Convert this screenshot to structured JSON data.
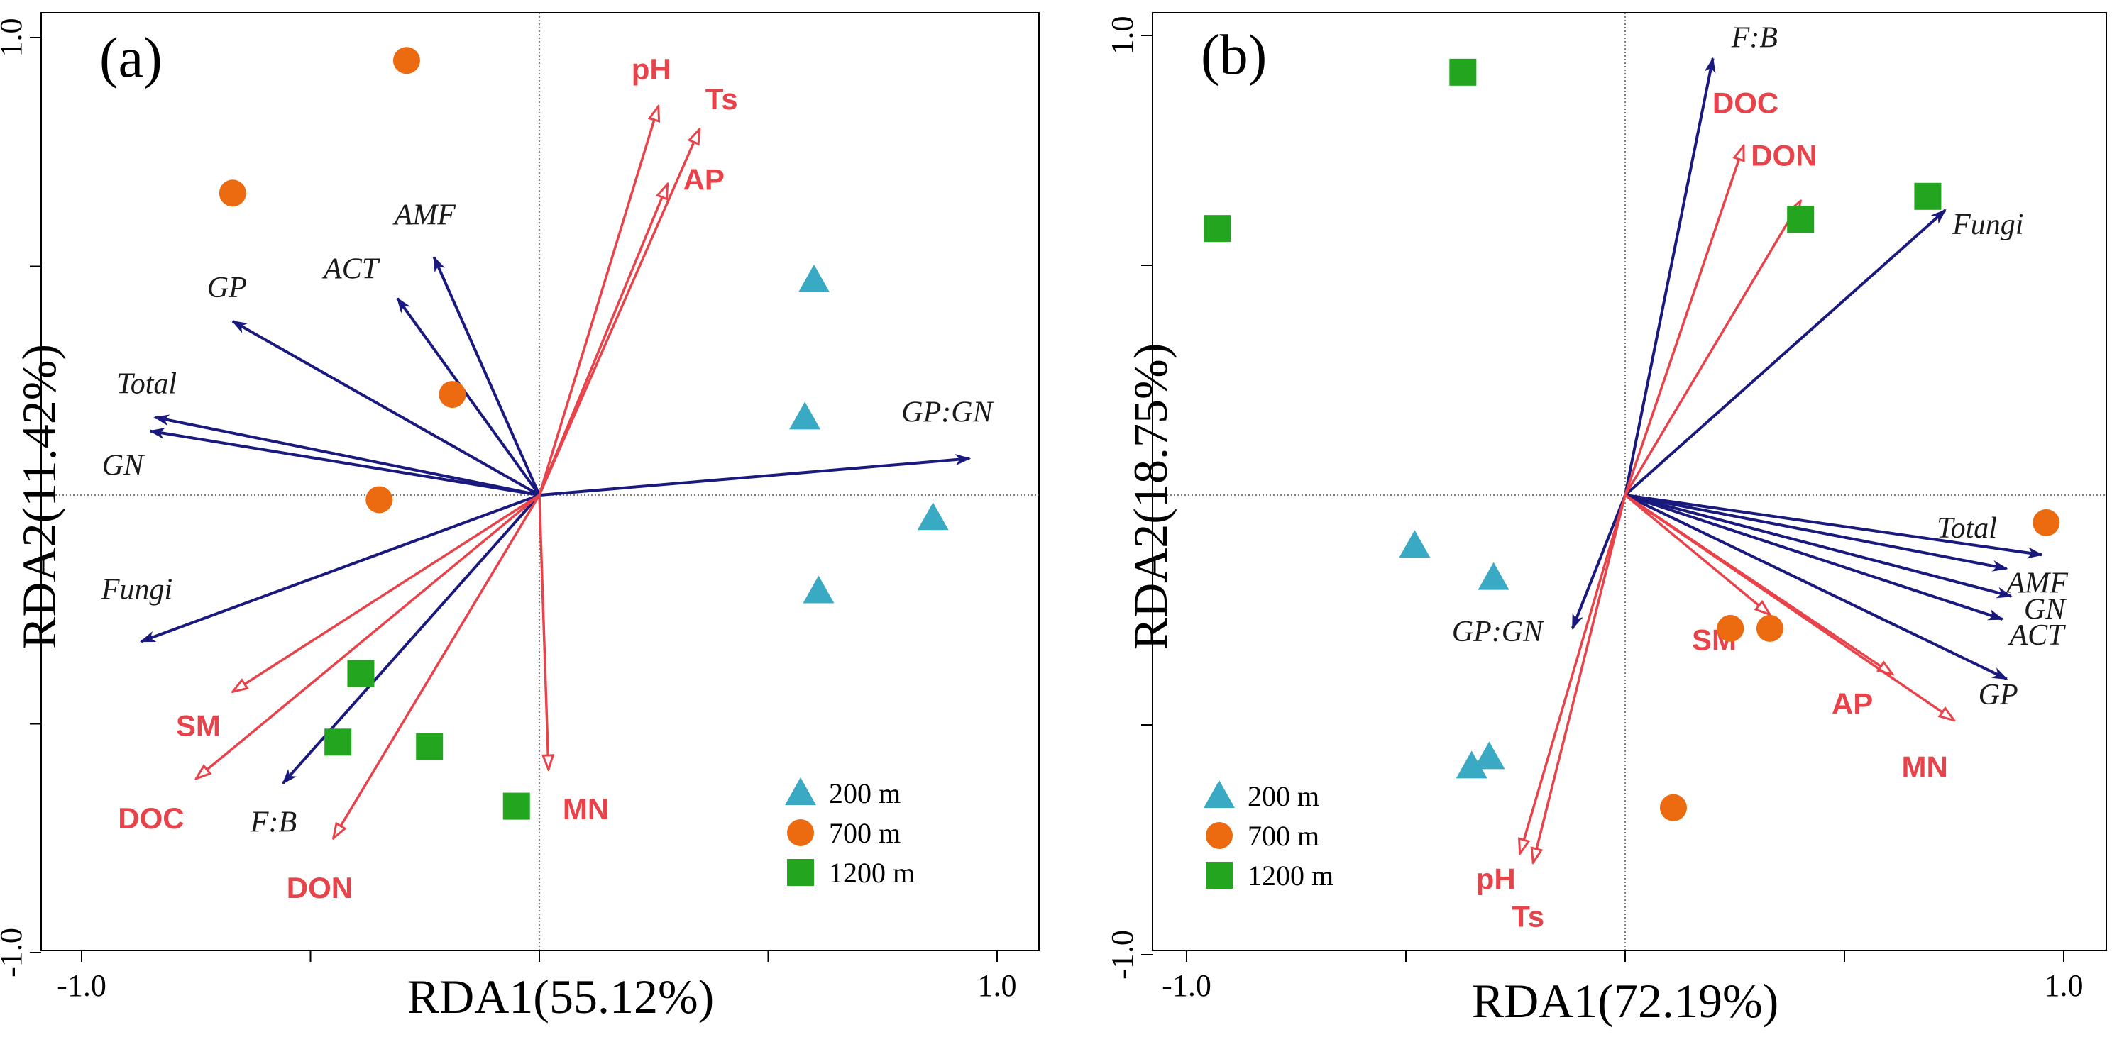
{
  "chart_data": [
    {
      "type": "scatter",
      "panel_label": "(a)",
      "xlabel": "RDA1(55.12%)",
      "ylabel": "RDA2(11.42%)",
      "xlim": [
        -1.0,
        1.0
      ],
      "ylim": [
        -1.0,
        1.0
      ],
      "x_ticks": [
        -1.0,
        -0.5,
        0.0,
        0.5,
        1.0
      ],
      "x_tick_labels": [
        "-1.0",
        "",
        "",
        "",
        "1.0"
      ],
      "y_ticks": [
        -1.0,
        -0.5,
        0.0,
        0.5,
        1.0
      ],
      "y_tick_labels": [
        "-1.0",
        "",
        "",
        "",
        "1.0"
      ],
      "env_vectors": [
        {
          "label": "pH",
          "x": 0.26,
          "y": 0.85
        },
        {
          "label": "Ts",
          "x": 0.35,
          "y": 0.8
        },
        {
          "label": "AP",
          "x": 0.28,
          "y": 0.68
        },
        {
          "label": "MN",
          "x": 0.02,
          "y": -0.6
        },
        {
          "label": "SM",
          "x": -0.67,
          "y": -0.43
        },
        {
          "label": "DOC",
          "x": -0.75,
          "y": -0.62
        },
        {
          "label": "DON",
          "x": -0.45,
          "y": -0.75
        }
      ],
      "species_vectors": [
        {
          "label": "AMF",
          "x": -0.23,
          "y": 0.52
        },
        {
          "label": "GP",
          "x": -0.67,
          "y": 0.38
        },
        {
          "label": "ACT",
          "x": -0.31,
          "y": 0.43
        },
        {
          "label": "Total",
          "x": -0.84,
          "y": 0.17
        },
        {
          "label": "GN",
          "x": -0.85,
          "y": 0.14
        },
        {
          "label": "GP:GN",
          "x": 0.94,
          "y": 0.08
        },
        {
          "label": "Fungi",
          "x": -0.87,
          "y": -0.32
        },
        {
          "label": "F:B",
          "x": -0.56,
          "y": -0.63
        }
      ],
      "series": [
        {
          "name": "200 m",
          "marker": "triangle",
          "color": "#3aaac4",
          "points": [
            [
              0.6,
              0.47
            ],
            [
              0.58,
              0.17
            ],
            [
              0.86,
              -0.05
            ],
            [
              0.61,
              -0.21
            ]
          ]
        },
        {
          "name": "700 m",
          "marker": "circle",
          "color": "#ec6a10",
          "points": [
            [
              -0.29,
              0.95
            ],
            [
              -0.67,
              0.66
            ],
            [
              -0.19,
              0.22
            ],
            [
              -0.35,
              -0.01
            ]
          ]
        },
        {
          "name": "1200 m",
          "marker": "square",
          "color": "#23a51f",
          "points": [
            [
              -0.39,
              -0.39
            ],
            [
              -0.44,
              -0.54
            ],
            [
              -0.24,
              -0.55
            ],
            [
              -0.05,
              -0.68
            ]
          ]
        }
      ],
      "legend": [
        "200 m",
        "700 m",
        "1200 m"
      ],
      "legend_position": "bottom-right"
    },
    {
      "type": "scatter",
      "panel_label": "(b)",
      "xlabel": "RDA1(72.19%)",
      "ylabel": "RDA2(18.75%)",
      "xlim": [
        -1.0,
        1.0
      ],
      "ylim": [
        -1.0,
        1.0
      ],
      "x_ticks": [
        -1.0,
        -0.5,
        0.0,
        0.5,
        1.0
      ],
      "x_tick_labels": [
        "-1.0",
        "",
        "",
        "",
        "1.0"
      ],
      "y_ticks": [
        -1.0,
        -0.5,
        0.0,
        0.5,
        1.0
      ],
      "y_tick_labels": [
        "-1.0",
        "",
        "",
        "",
        "1.0"
      ],
      "env_vectors": [
        {
          "label": "DOC",
          "x": 0.27,
          "y": 0.76
        },
        {
          "label": "DON",
          "x": 0.4,
          "y": 0.64
        },
        {
          "label": "SM",
          "x": 0.33,
          "y": -0.26
        },
        {
          "label": "AP",
          "x": 0.61,
          "y": -0.39
        },
        {
          "label": "MN",
          "x": 0.75,
          "y": -0.49
        },
        {
          "label": "pH",
          "x": -0.24,
          "y": -0.78
        },
        {
          "label": "Ts",
          "x": -0.21,
          "y": -0.8
        }
      ],
      "species_vectors": [
        {
          "label": "F:B",
          "x": 0.2,
          "y": 0.95
        },
        {
          "label": "Fungi",
          "x": 0.73,
          "y": 0.62
        },
        {
          "label": "Total",
          "x": 0.95,
          "y": -0.13
        },
        {
          "label": "AMF",
          "x": 0.87,
          "y": -0.16
        },
        {
          "label": "GN",
          "x": 0.88,
          "y": -0.22
        },
        {
          "label": "ACT",
          "x": 0.86,
          "y": -0.27
        },
        {
          "label": "GP",
          "x": 0.87,
          "y": -0.4
        },
        {
          "label": "GP:GN",
          "x": -0.12,
          "y": -0.29
        }
      ],
      "series": [
        {
          "name": "200 m",
          "marker": "triangle",
          "color": "#3aaac4",
          "points": [
            [
              -0.48,
              -0.11
            ],
            [
              -0.3,
              -0.18
            ],
            [
              -0.35,
              -0.59
            ],
            [
              -0.31,
              -0.57
            ]
          ]
        },
        {
          "name": "700 m",
          "marker": "circle",
          "color": "#ec6a10",
          "points": [
            [
              0.96,
              -0.06
            ],
            [
              0.24,
              -0.29
            ],
            [
              0.33,
              -0.29
            ],
            [
              0.11,
              -0.68
            ]
          ]
        },
        {
          "name": "1200 m",
          "marker": "square",
          "color": "#23a51f",
          "points": [
            [
              -0.37,
              0.92
            ],
            [
              -0.93,
              0.58
            ],
            [
              0.4,
              0.6
            ],
            [
              0.69,
              0.65
            ]
          ]
        }
      ],
      "legend": [
        "200 m",
        "700 m",
        "1200 m"
      ],
      "legend_position": "bottom-left"
    }
  ],
  "colors": {
    "env_vector": "#e8434a",
    "species_vector": "#1a1a7e",
    "axis": "#000000"
  }
}
